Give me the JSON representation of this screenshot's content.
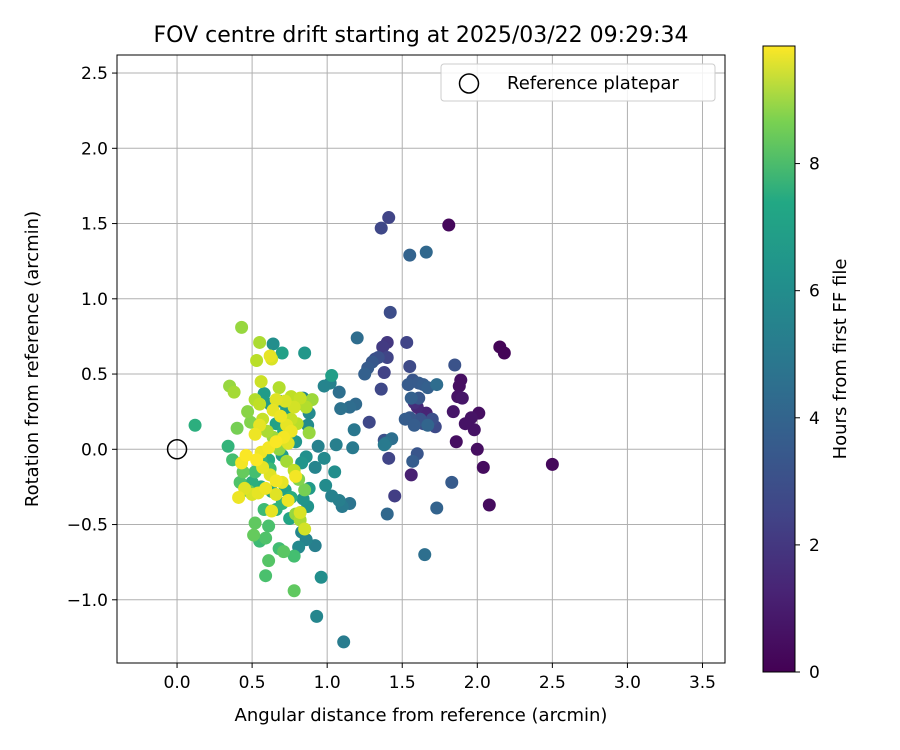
{
  "chart_data": {
    "type": "scatter",
    "title": "FOV centre drift starting at 2025/03/22 09:29:34",
    "xlabel": "Angular distance from reference (arcmin)",
    "ylabel": "Rotation from reference (arcmin)",
    "xlim": [
      -0.4,
      3.65
    ],
    "ylim": [
      -1.42,
      2.62
    ],
    "x_ticks": [
      0.0,
      0.5,
      1.0,
      1.5,
      2.0,
      2.5,
      3.0,
      3.5
    ],
    "x_tick_labels": [
      "0.0",
      "0.5",
      "1.0",
      "1.5",
      "2.0",
      "2.5",
      "3.0",
      "3.5"
    ],
    "y_ticks": [
      -1.0,
      -0.5,
      0.0,
      0.5,
      1.0,
      1.5,
      2.0,
      2.5
    ],
    "y_tick_labels": [
      "−1.0",
      "−0.5",
      "0.0",
      "0.5",
      "1.0",
      "1.5",
      "2.0",
      "2.5"
    ],
    "grid": true,
    "legend": {
      "placement": "top-right",
      "entries": [
        {
          "label": "Reference platepar",
          "marker": "open-circle"
        }
      ]
    },
    "reference_point": {
      "x": 0.0,
      "y": 0.0
    },
    "colorbar": {
      "label": "Hours from first FF file",
      "colormap": "viridis",
      "range": [
        0,
        9.85
      ],
      "ticks": [
        0,
        2,
        4,
        6,
        8
      ],
      "tick_labels": [
        "0",
        "2",
        "4",
        "6",
        "8"
      ]
    },
    "points": [
      [
        1.81,
        1.49,
        0.2
      ],
      [
        2.15,
        0.68,
        0.1
      ],
      [
        2.18,
        0.64,
        0.1
      ],
      [
        2.5,
        -0.1,
        0.2
      ],
      [
        2.08,
        -0.37,
        0.3
      ],
      [
        2.04,
        -0.12,
        0.3
      ],
      [
        2.0,
        0.0,
        0.4
      ],
      [
        2.01,
        0.24,
        0.4
      ],
      [
        1.98,
        0.13,
        0.5
      ],
      [
        1.96,
        0.21,
        0.5
      ],
      [
        1.92,
        0.17,
        0.5
      ],
      [
        1.89,
        0.46,
        0.4
      ],
      [
        1.88,
        0.42,
        0.4
      ],
      [
        1.87,
        0.35,
        0.5
      ],
      [
        1.9,
        0.34,
        0.6
      ],
      [
        1.84,
        0.25,
        0.6
      ],
      [
        1.86,
        0.05,
        0.4
      ],
      [
        1.83,
        -0.22,
        2.8
      ],
      [
        1.85,
        0.56,
        2.5
      ],
      [
        1.41,
        1.54,
        2.0
      ],
      [
        1.36,
        1.47,
        2.1
      ],
      [
        1.55,
        1.29,
        3.1
      ],
      [
        1.66,
        1.31,
        3.3
      ],
      [
        1.42,
        0.91,
        2.3
      ],
      [
        1.4,
        0.71,
        1.6
      ],
      [
        1.37,
        0.68,
        1.7
      ],
      [
        1.53,
        0.71,
        2.0
      ],
      [
        1.34,
        0.61,
        2.4
      ],
      [
        1.32,
        0.6,
        2.3
      ],
      [
        1.3,
        0.58,
        2.7
      ],
      [
        1.27,
        0.54,
        2.8
      ],
      [
        1.25,
        0.5,
        3.0
      ],
      [
        1.2,
        0.74,
        3.5
      ],
      [
        1.38,
        0.51,
        1.9
      ],
      [
        1.4,
        0.61,
        2.0
      ],
      [
        1.36,
        0.4,
        2.1
      ],
      [
        1.55,
        0.55,
        2.2
      ],
      [
        1.57,
        0.46,
        2.6
      ],
      [
        1.54,
        0.43,
        2.8
      ],
      [
        1.61,
        0.44,
        2.8
      ],
      [
        1.64,
        0.43,
        2.9
      ],
      [
        1.67,
        0.41,
        3.0
      ],
      [
        1.73,
        0.43,
        3.5
      ],
      [
        1.56,
        0.34,
        3.0
      ],
      [
        1.61,
        0.34,
        2.7
      ],
      [
        1.58,
        0.31,
        1.3
      ],
      [
        1.6,
        0.28,
        1.1
      ],
      [
        1.63,
        0.24,
        0.9
      ],
      [
        1.66,
        0.24,
        1.0
      ],
      [
        1.52,
        0.2,
        2.9
      ],
      [
        1.55,
        0.21,
        2.7
      ],
      [
        1.62,
        0.2,
        2.6
      ],
      [
        1.64,
        0.17,
        2.3
      ],
      [
        1.7,
        0.2,
        2.4
      ],
      [
        1.72,
        0.15,
        2.2
      ],
      [
        1.67,
        0.16,
        3.2
      ],
      [
        1.58,
        0.16,
        2.9
      ],
      [
        1.38,
        0.06,
        2.4
      ],
      [
        1.39,
        0.04,
        3.8
      ],
      [
        1.38,
        0.03,
        4.0
      ],
      [
        1.43,
        0.07,
        3.6
      ],
      [
        1.41,
        -0.06,
        2.0
      ],
      [
        1.6,
        -0.03,
        2.6
      ],
      [
        1.57,
        -0.08,
        2.9
      ],
      [
        1.56,
        -0.17,
        0.9
      ],
      [
        1.45,
        -0.31,
        1.8
      ],
      [
        1.4,
        -0.43,
        3.3
      ],
      [
        1.73,
        -0.39,
        3.1
      ],
      [
        1.65,
        -0.7,
        3.6
      ],
      [
        1.28,
        0.18,
        2.1
      ],
      [
        1.15,
        0.28,
        3.5
      ],
      [
        1.19,
        0.3,
        3.4
      ],
      [
        1.08,
        0.38,
        3.6
      ],
      [
        1.09,
        0.27,
        3.7
      ],
      [
        1.18,
        0.13,
        3.9
      ],
      [
        1.17,
        0.01,
        4.0
      ],
      [
        1.06,
        0.03,
        4.2
      ],
      [
        1.02,
        0.44,
        4.3
      ],
      [
        1.03,
        0.49,
        5.5
      ],
      [
        0.98,
        0.42,
        4.4
      ],
      [
        0.94,
        0.02,
        4.3
      ],
      [
        0.98,
        -0.06,
        4.6
      ],
      [
        0.92,
        -0.12,
        4.4
      ],
      [
        1.05,
        -0.15,
        4.8
      ],
      [
        0.99,
        -0.24,
        4.7
      ],
      [
        1.03,
        -0.31,
        4.3
      ],
      [
        1.08,
        -0.34,
        4.2
      ],
      [
        1.1,
        -0.38,
        4.0
      ],
      [
        1.15,
        -0.36,
        3.8
      ],
      [
        0.85,
        0.64,
        5.2
      ],
      [
        0.8,
        0.3,
        4.8
      ],
      [
        0.84,
        0.34,
        4.5
      ],
      [
        0.88,
        0.24,
        4.6
      ],
      [
        0.87,
        0.16,
        4.7
      ],
      [
        0.86,
        -0.05,
        4.9
      ],
      [
        0.83,
        -0.09,
        5.1
      ],
      [
        0.88,
        -0.26,
        5.3
      ],
      [
        0.84,
        -0.33,
        5.1
      ],
      [
        0.87,
        -0.38,
        5.0
      ],
      [
        0.83,
        -0.55,
        4.5
      ],
      [
        0.86,
        -0.6,
        4.4
      ],
      [
        0.92,
        -0.64,
        4.2
      ],
      [
        0.81,
        -0.65,
        4.6
      ],
      [
        0.96,
        -0.85,
        4.8
      ],
      [
        0.93,
        -1.11,
        4.5
      ],
      [
        1.11,
        -1.28,
        4.1
      ],
      [
        0.64,
        0.7,
        4.8
      ],
      [
        0.7,
        0.64,
        5.6
      ],
      [
        0.58,
        0.37,
        5.4
      ],
      [
        0.62,
        0.3,
        5.3
      ],
      [
        0.68,
        0.32,
        5.0
      ],
      [
        0.73,
        0.27,
        5.4
      ],
      [
        0.66,
        0.17,
        5.6
      ],
      [
        0.71,
        0.12,
        5.9
      ],
      [
        0.76,
        0.07,
        5.3
      ],
      [
        0.79,
        0.05,
        5.1
      ],
      [
        0.7,
        -0.04,
        5.5
      ],
      [
        0.61,
        -0.07,
        6.0
      ],
      [
        0.56,
        -0.08,
        6.4
      ],
      [
        0.62,
        -0.13,
        6.6
      ],
      [
        0.52,
        -0.15,
        6.9
      ],
      [
        0.5,
        -0.22,
        6.2
      ],
      [
        0.56,
        -0.25,
        6.0
      ],
      [
        0.63,
        -0.28,
        5.7
      ],
      [
        0.72,
        -0.27,
        5.6
      ],
      [
        0.76,
        -0.32,
        6.1
      ],
      [
        0.7,
        -0.36,
        6.4
      ],
      [
        0.66,
        -0.4,
        6.2
      ],
      [
        0.75,
        -0.46,
        5.8
      ],
      [
        0.58,
        -0.4,
        6.7
      ],
      [
        0.61,
        -0.51,
        7.0
      ],
      [
        0.52,
        -0.49,
        7.4
      ],
      [
        0.59,
        -0.59,
        7.1
      ],
      [
        0.51,
        -0.57,
        7.5
      ],
      [
        0.55,
        -0.61,
        6.7
      ],
      [
        0.68,
        -0.66,
        6.8
      ],
      [
        0.71,
        -0.68,
        7.3
      ],
      [
        0.78,
        -0.71,
        6.9
      ],
      [
        0.61,
        -0.74,
        7.2
      ],
      [
        0.59,
        -0.84,
        7.0
      ],
      [
        0.78,
        -0.94,
        7.4
      ],
      [
        0.12,
        0.16,
        6.2
      ],
      [
        0.34,
        0.02,
        6.4
      ],
      [
        0.37,
        -0.07,
        6.9
      ],
      [
        0.44,
        -0.15,
        7.5
      ],
      [
        0.42,
        -0.22,
        7.1
      ],
      [
        0.48,
        -0.28,
        7.7
      ],
      [
        0.4,
        0.14,
        7.8
      ],
      [
        0.49,
        0.18,
        8.0
      ],
      [
        0.47,
        0.25,
        8.1
      ],
      [
        0.35,
        0.42,
        8.3
      ],
      [
        0.38,
        0.38,
        8.5
      ],
      [
        0.52,
        0.33,
        8.7
      ],
      [
        0.55,
        0.3,
        8.9
      ],
      [
        0.57,
        0.2,
        9.0
      ],
      [
        0.6,
        0.12,
        8.6
      ],
      [
        0.64,
        0.08,
        8.4
      ],
      [
        0.68,
        0.0,
        8.2
      ],
      [
        0.73,
        -0.08,
        8.5
      ],
      [
        0.78,
        -0.14,
        8.9
      ],
      [
        0.81,
        -0.2,
        8.0
      ],
      [
        0.85,
        -0.27,
        7.8
      ],
      [
        0.79,
        -0.43,
        8.3
      ],
      [
        0.82,
        -0.47,
        8.6
      ],
      [
        0.9,
        0.33,
        8.4
      ],
      [
        0.88,
        0.11,
        8.3
      ],
      [
        0.8,
        0.17,
        8.8
      ],
      [
        0.76,
        0.2,
        9.0
      ],
      [
        0.78,
        0.28,
        9.2
      ],
      [
        0.72,
        0.32,
        9.3
      ],
      [
        0.66,
        0.33,
        9.4
      ],
      [
        0.64,
        0.26,
        9.5
      ],
      [
        0.69,
        0.22,
        9.6
      ],
      [
        0.73,
        0.16,
        9.5
      ],
      [
        0.76,
        0.12,
        9.6
      ],
      [
        0.71,
        0.08,
        9.7
      ],
      [
        0.66,
        0.05,
        9.8
      ],
      [
        0.61,
        0.01,
        9.7
      ],
      [
        0.56,
        -0.02,
        9.6
      ],
      [
        0.53,
        -0.07,
        9.8
      ],
      [
        0.57,
        -0.12,
        9.5
      ],
      [
        0.62,
        -0.17,
        9.4
      ],
      [
        0.66,
        -0.21,
        9.7
      ],
      [
        0.59,
        -0.26,
        9.6
      ],
      [
        0.54,
        -0.29,
        9.5
      ],
      [
        0.5,
        -0.3,
        9.3
      ],
      [
        0.45,
        -0.26,
        9.4
      ],
      [
        0.41,
        -0.32,
        9.6
      ],
      [
        0.46,
        -0.04,
        9.8
      ],
      [
        0.43,
        -0.09,
        9.7
      ],
      [
        0.52,
        0.1,
        9.6
      ],
      [
        0.55,
        0.16,
        9.5
      ],
      [
        0.74,
        0.04,
        9.4
      ],
      [
        0.79,
        -0.18,
        9.7
      ],
      [
        0.7,
        -0.22,
        9.5
      ],
      [
        0.66,
        -0.3,
        9.4
      ],
      [
        0.74,
        -0.34,
        9.6
      ],
      [
        0.63,
        -0.41,
        9.5
      ],
      [
        0.82,
        -0.42,
        9.3
      ],
      [
        0.85,
        -0.53,
        9.2
      ],
      [
        0.43,
        0.81,
        8.3
      ],
      [
        0.55,
        0.71,
        8.6
      ],
      [
        0.53,
        0.59,
        8.8
      ],
      [
        0.63,
        0.6,
        9.3
      ],
      [
        0.62,
        0.62,
        9.5
      ],
      [
        0.56,
        0.45,
        9.1
      ],
      [
        0.68,
        0.41,
        8.7
      ],
      [
        0.76,
        0.35,
        8.9
      ],
      [
        0.82,
        0.34,
        9.0
      ],
      [
        0.86,
        0.28,
        8.7
      ]
    ]
  }
}
